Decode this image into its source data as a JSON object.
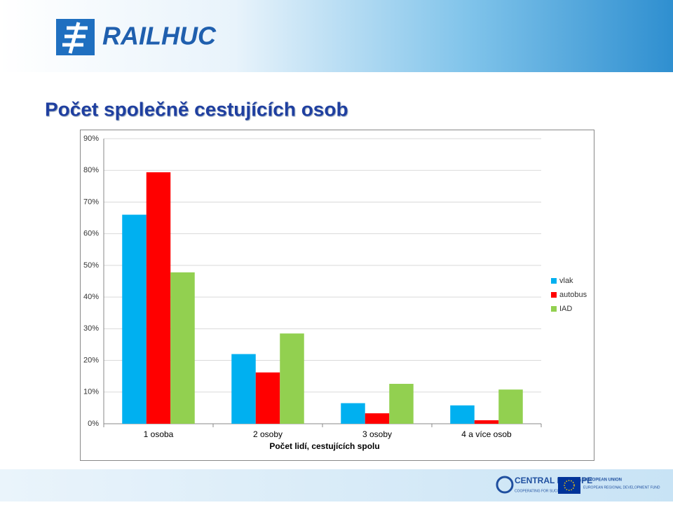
{
  "header": {
    "logo": "RAILHUC"
  },
  "footer": {
    "program": "CENTRAL EUROPE",
    "program_tagline": "COOPERATING FOR SUCCESS",
    "eu": "EUROPEAN UNION",
    "fund": "EUROPEAN REGIONAL DEVELOPMENT FUND"
  },
  "chart_data": {
    "type": "bar",
    "title": "Počet společně cestujících osob",
    "x_label": "Počet lidí, cestujících spolu",
    "categories": [
      "1 osoba",
      "2 osoby",
      "3 osoby",
      "4 a více osob"
    ],
    "series": [
      {
        "name": "vlak",
        "color": "#00b0f0",
        "values": [
          66,
          22,
          6.5,
          5.8
        ]
      },
      {
        "name": "autobus",
        "color": "#ff0000",
        "values": [
          79.4,
          16.2,
          3.3,
          1.1
        ]
      },
      {
        "name": "IAD",
        "color": "#92d050",
        "values": [
          47.8,
          28.5,
          12.6,
          10.8
        ]
      }
    ],
    "ylim": [
      0,
      90
    ],
    "yticks": [
      {
        "value": 0,
        "label": "0%"
      },
      {
        "value": 10,
        "label": "10%"
      },
      {
        "value": 20,
        "label": "20%"
      },
      {
        "value": 30,
        "label": "30%"
      },
      {
        "value": 40,
        "label": "40%"
      },
      {
        "value": 50,
        "label": "50%"
      },
      {
        "value": 60,
        "label": "60%"
      },
      {
        "value": 70,
        "label": "70%"
      },
      {
        "value": 80,
        "label": "80%"
      },
      {
        "value": 90,
        "label": "90%"
      }
    ],
    "grid": true,
    "legend": "right"
  }
}
